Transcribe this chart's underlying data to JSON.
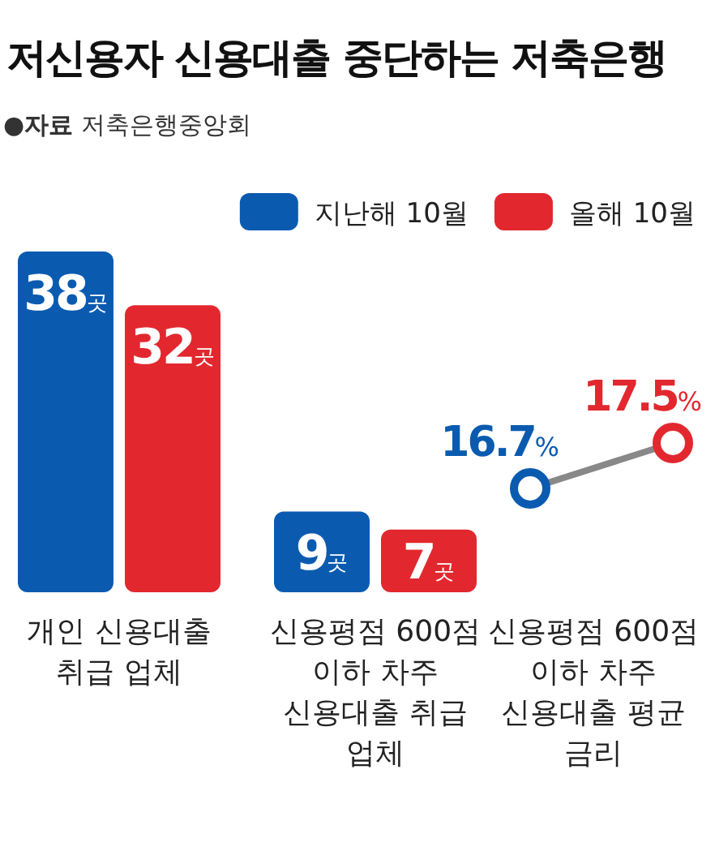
{
  "chart_data": [
    {
      "type": "bar",
      "title": "저신용자 신용대출 중단하는 저축은행",
      "annotations": [
        "●**자료** 저축은행중앙회"
      ],
      "categories": [
        "개인 신용대출 취급 업체",
        "신용평점 600점 이하 차주 신용대출 취급 업체"
      ],
      "series": [
        {
          "name": "지난해 10월",
          "color": "#0a5bb0",
          "values": [
            38,
            9
          ],
          "value_labels": [
            "38곳",
            "9곳"
          ]
        },
        {
          "name": "올해 10월",
          "color": "#e2282e",
          "values": [
            32,
            7
          ],
          "value_labels": [
            "32곳",
            "7곳"
          ]
        }
      ],
      "legend": "top right"
    },
    {
      "type": "line",
      "categories": [
        null,
        null
      ],
      "xlabel": "신용평점 600점 이하 차주 신용대출 평균 금리",
      "marker": "circle",
      "series": [
        {
          "color": "#888888",
          "colors": [
            "#0a5bb0",
            "#e2282e"
          ],
          "values": [
            16.7,
            17.5
          ],
          "value_labels": [
            "16.7%",
            "17.5%"
          ]
        }
      ]
    }
  ]
}
